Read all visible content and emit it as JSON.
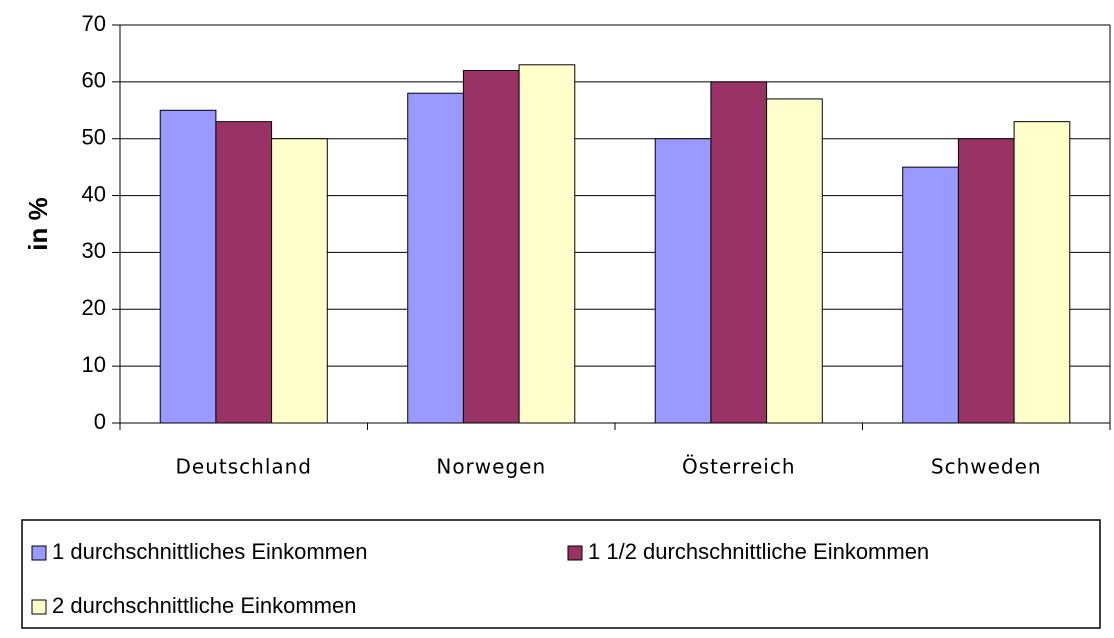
{
  "chart_data": {
    "type": "bar",
    "y_label": "in %",
    "categories": [
      "Deutschland",
      "Norwegen",
      "Österreich",
      "Schweden"
    ],
    "series": [
      {
        "name": "1 durchschnittliches Einkommen",
        "color": "#9999ff",
        "values": [
          55,
          58,
          50,
          45
        ]
      },
      {
        "name": "1 1/2 durchschnittliche Einkommen",
        "color": "#993366",
        "values": [
          53,
          62,
          60,
          50
        ]
      },
      {
        "name": "2 durchschnittliche Einkommen",
        "color": "#ffffcc",
        "values": [
          50,
          63,
          57,
          53
        ]
      }
    ],
    "ylim": [
      0,
      70
    ],
    "yticks": [
      0,
      10,
      20,
      30,
      40,
      50,
      60,
      70
    ],
    "grid": true,
    "legend": "bottom"
  }
}
